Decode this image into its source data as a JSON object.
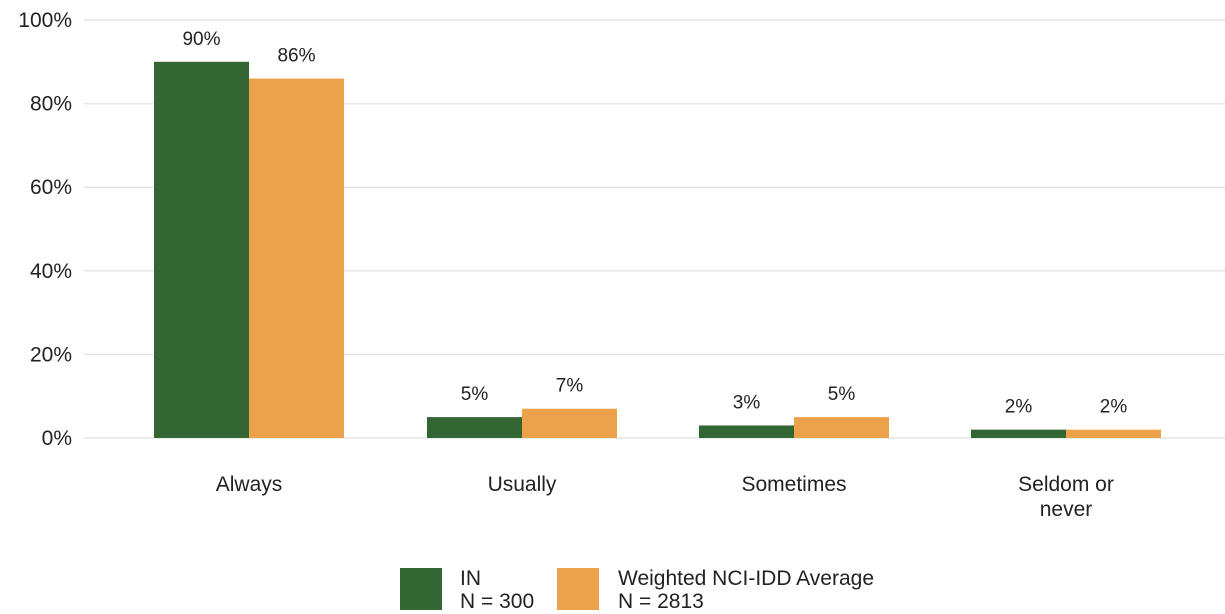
{
  "chart_data": {
    "type": "bar",
    "title": "",
    "xlabel": "",
    "ylabel": "",
    "ylim": [
      0,
      100
    ],
    "y_ticks": [
      "0%",
      "20%",
      "40%",
      "60%",
      "80%",
      "100%"
    ],
    "y_tick_values": [
      0,
      20,
      40,
      60,
      80,
      100
    ],
    "grid": true,
    "legend_position": "bottom",
    "categories": [
      [
        "Always"
      ],
      [
        "Usually"
      ],
      [
        "Sometimes"
      ],
      [
        "Seldom or",
        "never"
      ]
    ],
    "series": [
      {
        "name": "IN",
        "subtitle": "N = 300",
        "color": "#336633",
        "values": [
          90,
          5,
          3,
          2
        ],
        "labels": [
          "90%",
          "5%",
          "3%",
          "2%"
        ]
      },
      {
        "name": "Weighted NCI-IDD Average",
        "subtitle": "N = 2813",
        "color": "#eca24b",
        "values": [
          86,
          7,
          5,
          2
        ],
        "labels": [
          "86%",
          "7%",
          "5%",
          "2%"
        ]
      }
    ]
  }
}
